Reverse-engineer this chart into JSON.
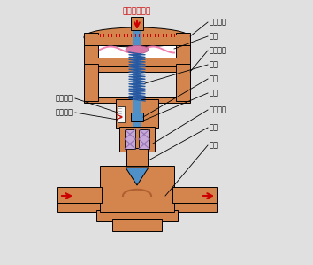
{
  "bg_color": "#e0e0e0",
  "orange": "#D4854E",
  "blue": "#5090C8",
  "blue_stem": "#4878B0",
  "purple": "#C8A8D8",
  "purple_x": "#9070B0",
  "pink": "#F080B0",
  "pink_center": "#D070A0",
  "red": "#CC0000",
  "white": "#FFFFFF",
  "black": "#000000",
  "title": "压力信号入口",
  "labels": {
    "membrane_upper": "膜室上腔",
    "membrane": "膜片",
    "membrane_lower": "膜室下腔",
    "spring": "弹簧",
    "pusher": "推杆",
    "valve_stem": "阀杆",
    "stroke_pointer": "行程指针",
    "stroke_scale": "行程刻度",
    "seal_packing": "密封填料",
    "valve_core": "阀芯",
    "valve_seat": "阀座"
  }
}
